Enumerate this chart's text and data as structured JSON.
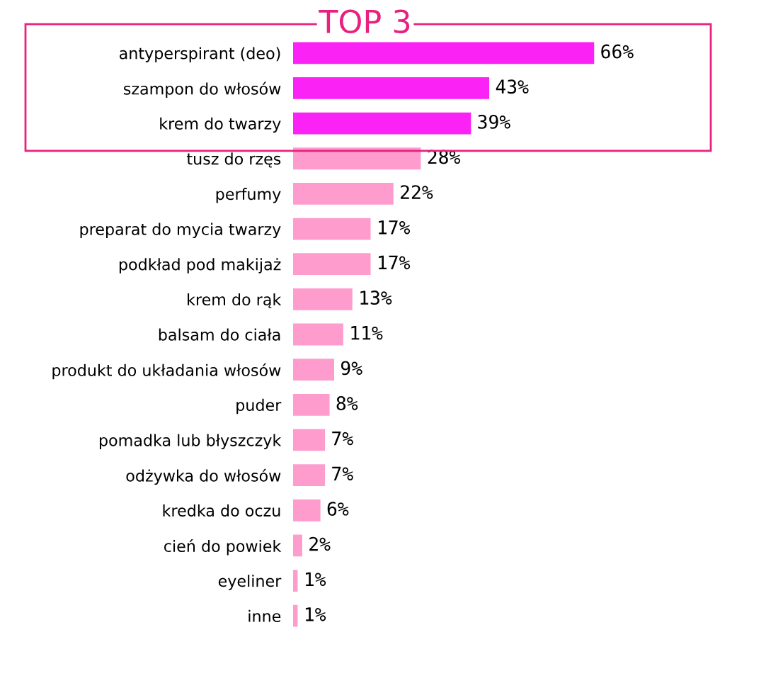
{
  "chart_data": {
    "type": "bar",
    "orientation": "horizontal",
    "categories": [
      "antyperspirant (deo)",
      "szampon do włosów",
      "krem do twarzy",
      "tusz do rzęs",
      "perfumy",
      "preparat do mycia twarzy",
      "podkład pod makijaż",
      "krem do rąk",
      "balsam do ciała",
      "produkt do układania włosów",
      "puder",
      "pomadka lub błyszczyk",
      "odżywka do włosów",
      "kredka do oczu",
      "cień do powiek",
      "eyeliner",
      "inne"
    ],
    "values": [
      66,
      43,
      39,
      28,
      22,
      17,
      17,
      13,
      11,
      9,
      8,
      7,
      7,
      6,
      2,
      1,
      1
    ],
    "value_labels": [
      "66%",
      "43%",
      "39%",
      "28%",
      "22%",
      "17%",
      "17%",
      "13%",
      "11%",
      "9%",
      "8%",
      "7%",
      "7%",
      "6%",
      "2%",
      "1%",
      "1%"
    ],
    "colors": [
      "#fb22f6",
      "#fb22f6",
      "#fb22f6",
      "#fe9ccd",
      "#fe9ccd",
      "#fe9ccd",
      "#fe9ccd",
      "#fe9ccd",
      "#fe9ccd",
      "#fe9ccd",
      "#fe9ccd",
      "#fe9ccd",
      "#fe9ccd",
      "#fe9ccd",
      "#fe9ccd",
      "#fe9ccd",
      "#fe9ccd"
    ],
    "annotations": [
      "TOP 3"
    ],
    "grid": false,
    "legend": false
  }
}
